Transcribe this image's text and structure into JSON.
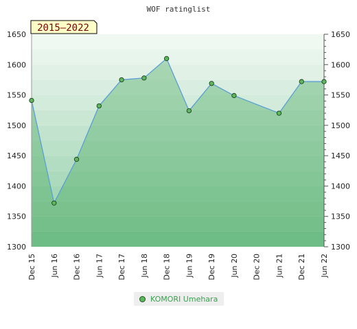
{
  "chart_data": {
    "type": "area",
    "title": "WOF ratinglist",
    "badge": "2015–2022",
    "categories": [
      "Dec 15",
      "Jun 16",
      "Dec 16",
      "Jun 17",
      "Dec 17",
      "Jun 18",
      "Dec 18",
      "Jun 19",
      "Dec 19",
      "Jun 20",
      "Dec 20",
      "Jun 21",
      "Dec 21",
      "Jun 22"
    ],
    "ylim": [
      1300,
      1650
    ],
    "yticks": [
      1300,
      1350,
      1400,
      1450,
      1500,
      1550,
      1600,
      1650
    ],
    "grid": true,
    "legend_position": "bottom-center",
    "series": [
      {
        "name": "KOMORI Umehara",
        "color": "#5cb85c",
        "x": [
          0,
          1,
          2,
          3,
          4,
          5,
          6,
          7,
          8,
          9,
          11,
          12,
          13
        ],
        "values": [
          1541,
          1372,
          1444,
          1532,
          1575,
          1578,
          1610,
          1524,
          1569,
          1549,
          1520,
          1572,
          1572
        ]
      }
    ]
  },
  "colors": {
    "band_dark": "#7cc596",
    "band_light": "#f0f8f2",
    "line": "#5a9fd4",
    "marker": "#5cb85c",
    "badge_fill": "#ffffc8"
  }
}
